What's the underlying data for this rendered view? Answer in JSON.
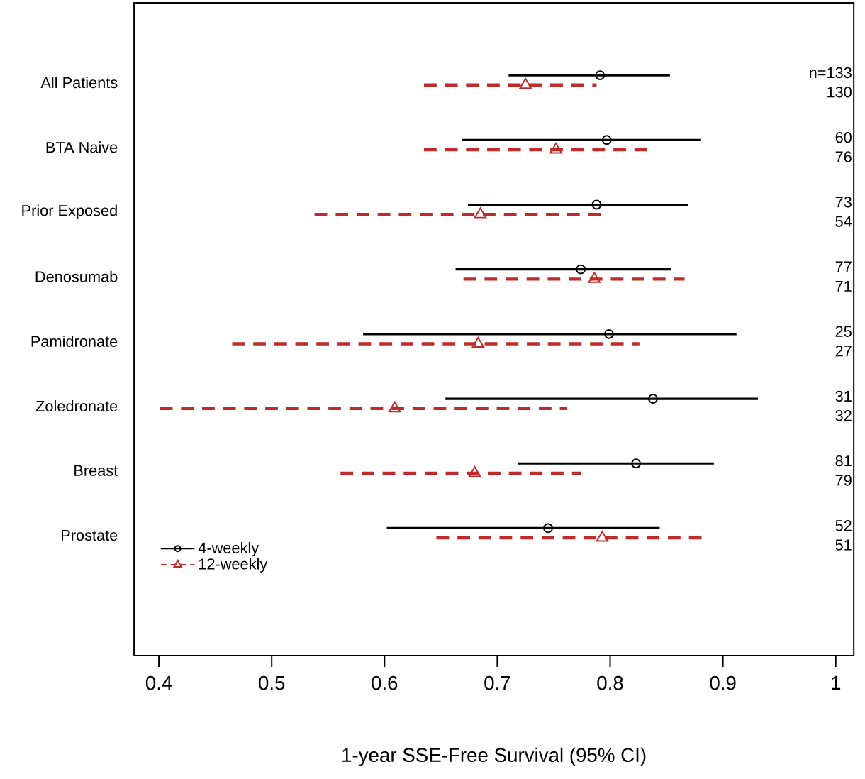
{
  "chart_data": {
    "type": "scatter",
    "orientation": "horizontal",
    "xlabel": "1-year SSE-Free Survival (95% CI)",
    "categories": [
      "All Patients",
      "BTA Naive",
      "Prior Exposed",
      "Denosumab",
      "Pamidronate",
      "Zoledronate",
      "Breast",
      "Prostate"
    ],
    "xlim": [
      0.378,
      1.016
    ],
    "xticks": [
      0.4,
      0.5,
      0.6,
      0.7,
      0.8,
      0.9,
      1
    ],
    "legend": "bottom left",
    "annotations": [
      "n=133",
      "130",
      "60",
      "76",
      "73",
      "54",
      "77",
      "71",
      "25",
      "27",
      "31",
      "32",
      "81",
      "79",
      "52",
      "51"
    ],
    "series": [
      {
        "name": "4-weekly",
        "color": "#000000",
        "marker": "circle",
        "line_style": "solid",
        "values": [
          0.791,
          0.797,
          0.788,
          0.774,
          0.799,
          0.838,
          0.823,
          0.745
        ],
        "errors": [
          [
            0.71,
            0.853
          ],
          [
            0.669,
            0.88
          ],
          [
            0.674,
            0.869
          ],
          [
            0.663,
            0.854
          ],
          [
            0.581,
            0.912
          ],
          [
            0.654,
            0.931
          ],
          [
            0.718,
            0.892
          ],
          [
            0.602,
            0.844
          ]
        ]
      },
      {
        "name": "12-weekly",
        "color": "#bf2a2a",
        "marker": "triangle",
        "line_style": "dashed",
        "values": [
          0.725,
          0.752,
          0.685,
          0.786,
          0.683,
          0.609,
          0.68,
          0.793
        ],
        "errors": [
          [
            0.635,
            0.788
          ],
          [
            0.635,
            0.833
          ],
          [
            0.538,
            0.795
          ],
          [
            0.67,
            0.866
          ],
          [
            0.465,
            0.826
          ],
          [
            0.401,
            0.762
          ],
          [
            0.561,
            0.774
          ],
          [
            0.646,
            0.885
          ]
        ]
      }
    ]
  }
}
